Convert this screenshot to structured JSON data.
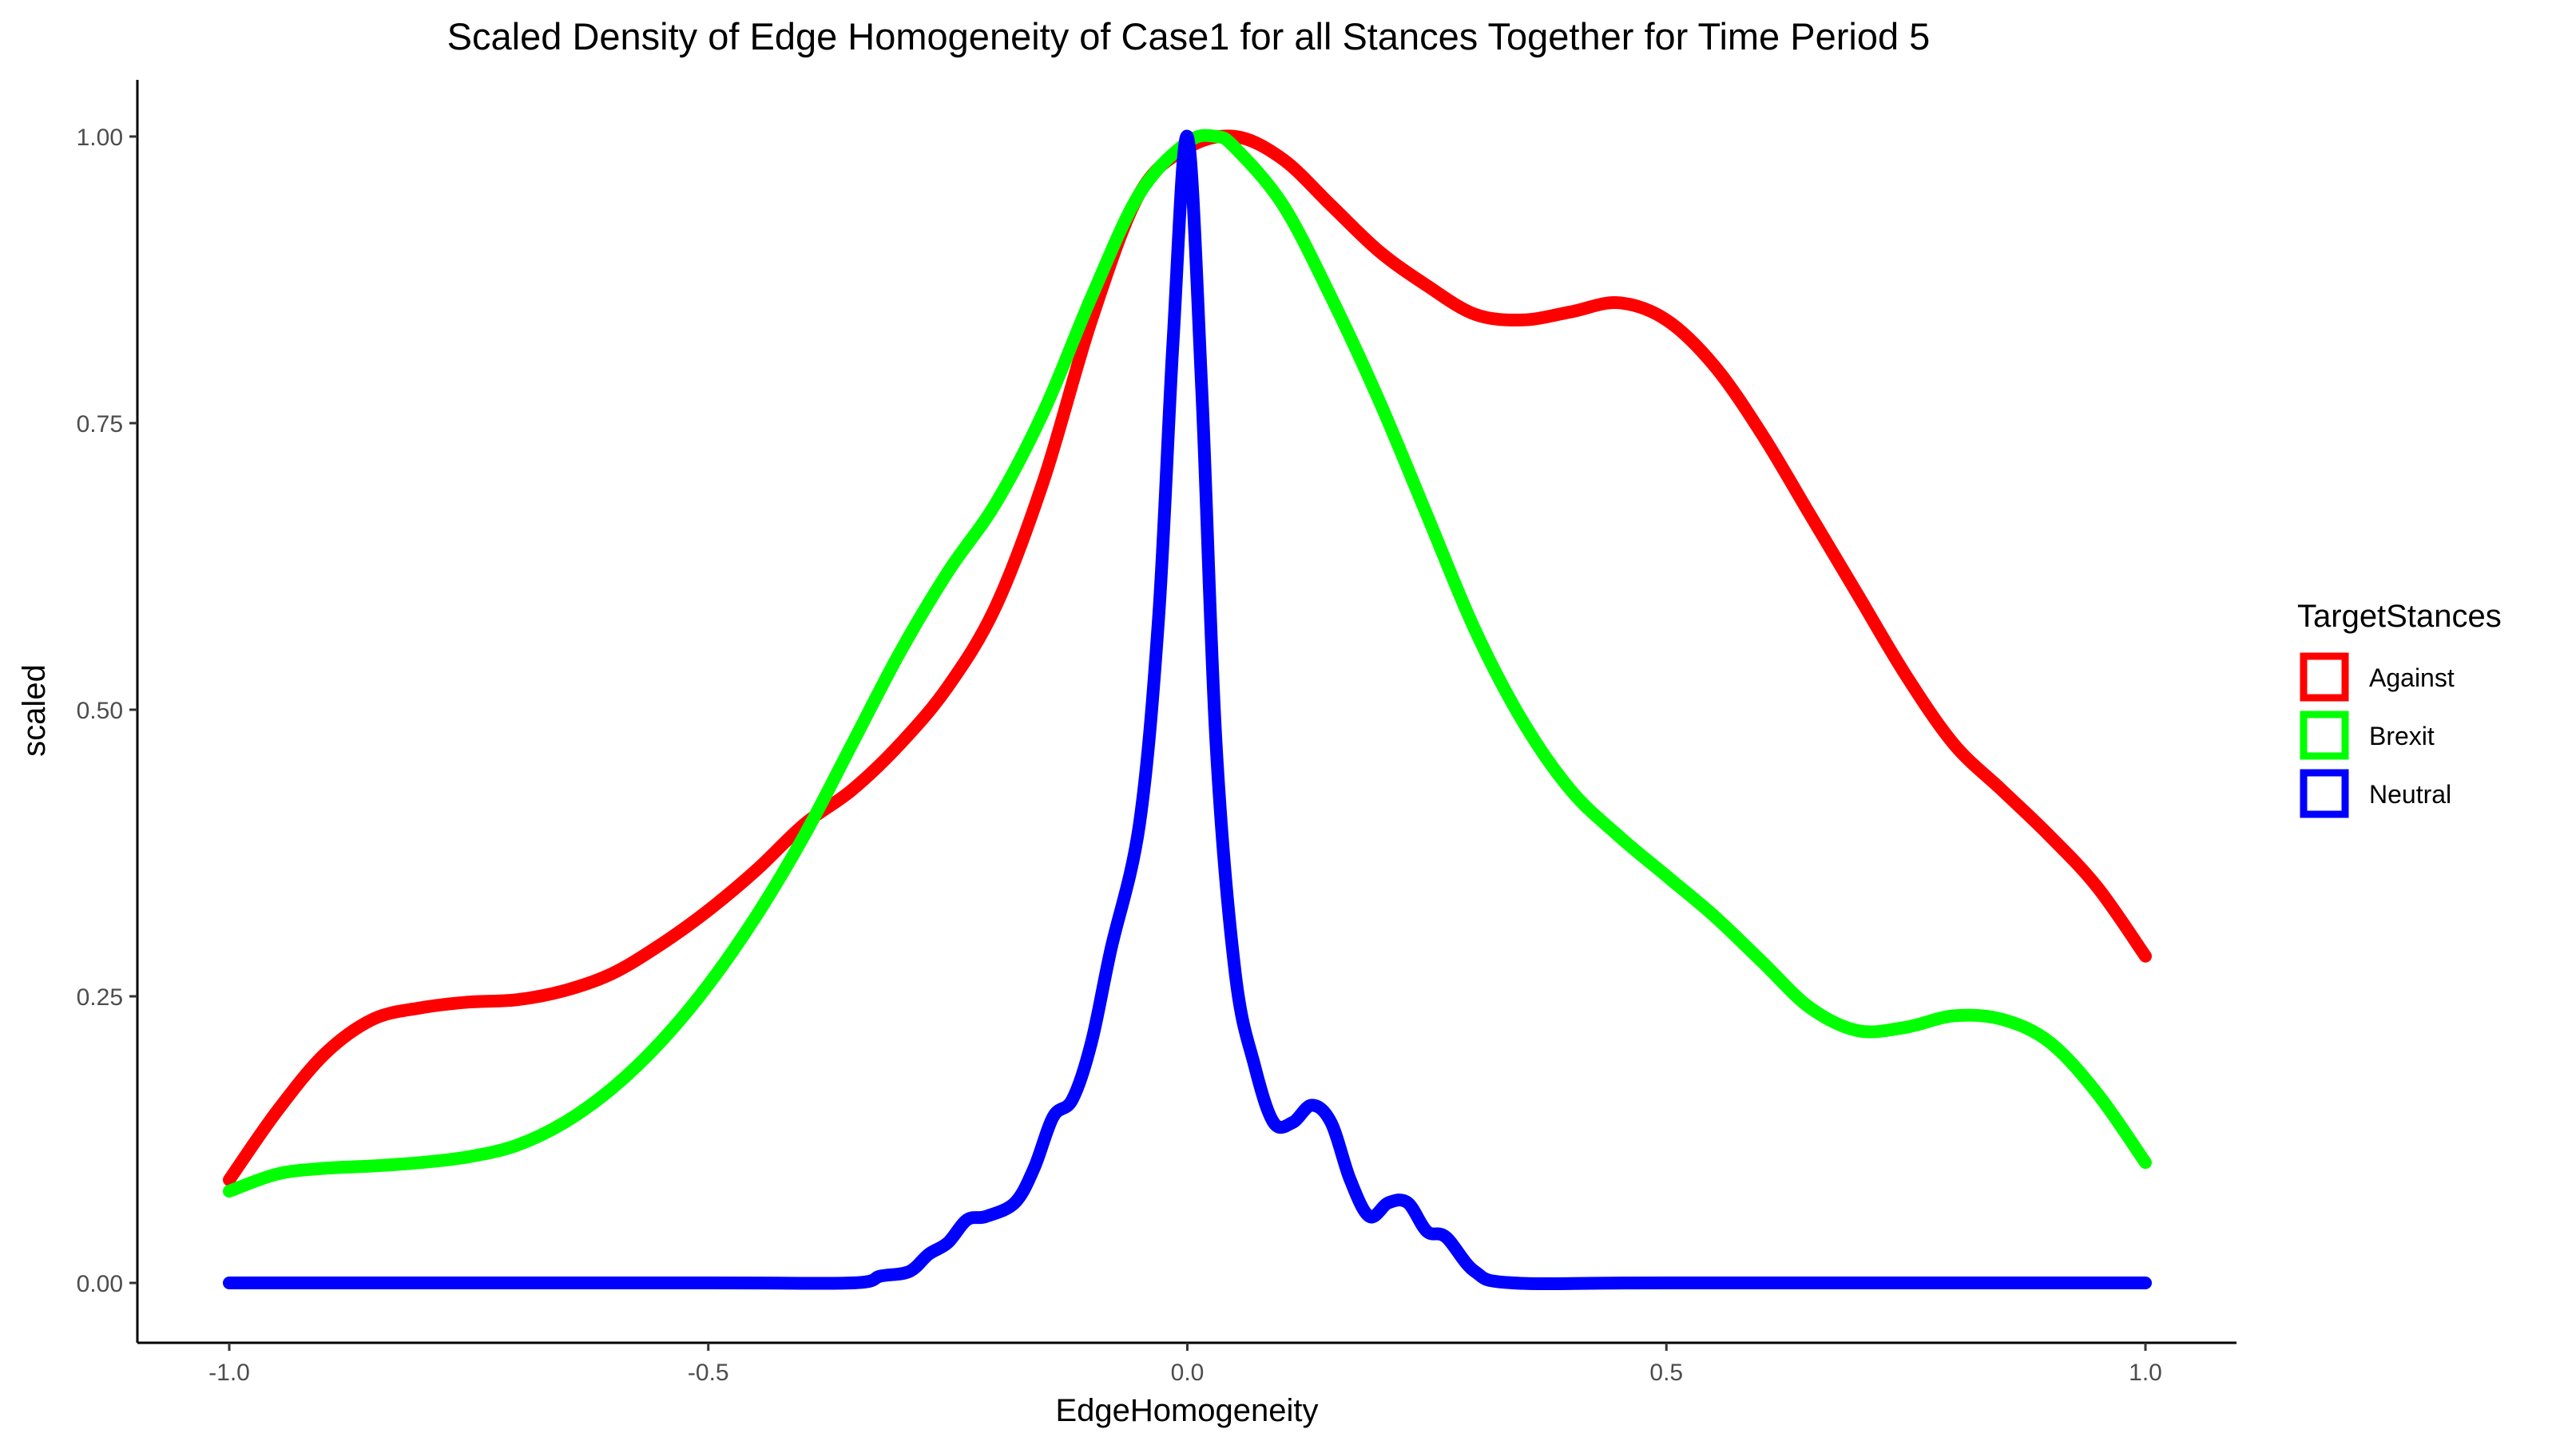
{
  "chart_data": {
    "type": "line",
    "title": "Scaled Density of Edge Homogeneity of Case1 for all Stances Together for Time Period 5",
    "xlabel": "EdgeHomogeneity",
    "ylabel": "scaled",
    "xlim": [
      -1.0,
      1.0
    ],
    "ylim": [
      0.0,
      1.0
    ],
    "x_ticks": [
      -1.0,
      -0.5,
      0.0,
      0.5,
      1.0
    ],
    "x_tick_labels": [
      "-1.0",
      "-0.5",
      "0.0",
      "0.5",
      "1.0"
    ],
    "y_ticks": [
      0.0,
      0.25,
      0.5,
      0.75,
      1.0
    ],
    "y_tick_labels": [
      "0.00",
      "0.25",
      "0.50",
      "0.75",
      "1.00"
    ],
    "grid": false,
    "legend": {
      "title": "TargetStances",
      "placement": "right"
    },
    "series": [
      {
        "name": "Against",
        "color": "#FF0000",
        "points": [
          [
            -1.0,
            0.09
          ],
          [
            -0.95,
            0.15
          ],
          [
            -0.9,
            0.2
          ],
          [
            -0.85,
            0.23
          ],
          [
            -0.8,
            0.24
          ],
          [
            -0.75,
            0.245
          ],
          [
            -0.7,
            0.247
          ],
          [
            -0.65,
            0.255
          ],
          [
            -0.6,
            0.27
          ],
          [
            -0.55,
            0.295
          ],
          [
            -0.5,
            0.325
          ],
          [
            -0.45,
            0.36
          ],
          [
            -0.4,
            0.4
          ],
          [
            -0.35,
            0.43
          ],
          [
            -0.3,
            0.47
          ],
          [
            -0.25,
            0.52
          ],
          [
            -0.2,
            0.59
          ],
          [
            -0.15,
            0.7
          ],
          [
            -0.1,
            0.84
          ],
          [
            -0.05,
            0.95
          ],
          [
            0.0,
            0.99
          ],
          [
            0.05,
            1.0
          ],
          [
            0.1,
            0.98
          ],
          [
            0.15,
            0.94
          ],
          [
            0.2,
            0.9
          ],
          [
            0.25,
            0.87
          ],
          [
            0.3,
            0.845
          ],
          [
            0.35,
            0.84
          ],
          [
            0.4,
            0.847
          ],
          [
            0.45,
            0.855
          ],
          [
            0.5,
            0.84
          ],
          [
            0.55,
            0.8
          ],
          [
            0.6,
            0.74
          ],
          [
            0.65,
            0.67
          ],
          [
            0.7,
            0.6
          ],
          [
            0.75,
            0.53
          ],
          [
            0.8,
            0.47
          ],
          [
            0.85,
            0.43
          ],
          [
            0.9,
            0.39
          ],
          [
            0.95,
            0.345
          ],
          [
            1.0,
            0.285
          ]
        ]
      },
      {
        "name": "Brexit",
        "color": "#00FF00",
        "points": [
          [
            -1.0,
            0.08
          ],
          [
            -0.95,
            0.095
          ],
          [
            -0.9,
            0.1
          ],
          [
            -0.85,
            0.102
          ],
          [
            -0.8,
            0.105
          ],
          [
            -0.75,
            0.11
          ],
          [
            -0.7,
            0.12
          ],
          [
            -0.65,
            0.14
          ],
          [
            -0.6,
            0.17
          ],
          [
            -0.55,
            0.21
          ],
          [
            -0.5,
            0.26
          ],
          [
            -0.45,
            0.32
          ],
          [
            -0.4,
            0.39
          ],
          [
            -0.35,
            0.47
          ],
          [
            -0.3,
            0.55
          ],
          [
            -0.25,
            0.62
          ],
          [
            -0.2,
            0.68
          ],
          [
            -0.15,
            0.76
          ],
          [
            -0.1,
            0.86
          ],
          [
            -0.05,
            0.95
          ],
          [
            0.0,
            0.995
          ],
          [
            0.03,
            1.0
          ],
          [
            0.05,
            0.99
          ],
          [
            0.1,
            0.94
          ],
          [
            0.15,
            0.86
          ],
          [
            0.2,
            0.77
          ],
          [
            0.25,
            0.67
          ],
          [
            0.3,
            0.57
          ],
          [
            0.35,
            0.49
          ],
          [
            0.4,
            0.43
          ],
          [
            0.45,
            0.39
          ],
          [
            0.5,
            0.355
          ],
          [
            0.55,
            0.32
          ],
          [
            0.6,
            0.28
          ],
          [
            0.65,
            0.24
          ],
          [
            0.7,
            0.22
          ],
          [
            0.75,
            0.223
          ],
          [
            0.8,
            0.233
          ],
          [
            0.85,
            0.23
          ],
          [
            0.9,
            0.21
          ],
          [
            0.95,
            0.165
          ],
          [
            1.0,
            0.105
          ]
        ]
      },
      {
        "name": "Neutral",
        "color": "#0000FF",
        "points": [
          [
            -1.0,
            0.0
          ],
          [
            -0.5,
            0.0
          ],
          [
            -0.35,
            0.0
          ],
          [
            -0.32,
            0.006
          ],
          [
            -0.29,
            0.01
          ],
          [
            -0.27,
            0.025
          ],
          [
            -0.25,
            0.035
          ],
          [
            -0.23,
            0.055
          ],
          [
            -0.21,
            0.058
          ],
          [
            -0.18,
            0.07
          ],
          [
            -0.16,
            0.1
          ],
          [
            -0.14,
            0.145
          ],
          [
            -0.12,
            0.16
          ],
          [
            -0.1,
            0.21
          ],
          [
            -0.08,
            0.29
          ],
          [
            -0.05,
            0.4
          ],
          [
            -0.03,
            0.58
          ],
          [
            -0.015,
            0.82
          ],
          [
            0.0,
            1.0
          ],
          [
            0.015,
            0.78
          ],
          [
            0.03,
            0.47
          ],
          [
            0.05,
            0.27
          ],
          [
            0.07,
            0.19
          ],
          [
            0.09,
            0.14
          ],
          [
            0.11,
            0.14
          ],
          [
            0.13,
            0.155
          ],
          [
            0.15,
            0.14
          ],
          [
            0.17,
            0.09
          ],
          [
            0.19,
            0.058
          ],
          [
            0.21,
            0.07
          ],
          [
            0.23,
            0.07
          ],
          [
            0.25,
            0.045
          ],
          [
            0.27,
            0.04
          ],
          [
            0.3,
            0.01
          ],
          [
            0.34,
            0.0
          ],
          [
            0.5,
            0.0
          ],
          [
            1.0,
            0.0
          ]
        ]
      }
    ]
  }
}
